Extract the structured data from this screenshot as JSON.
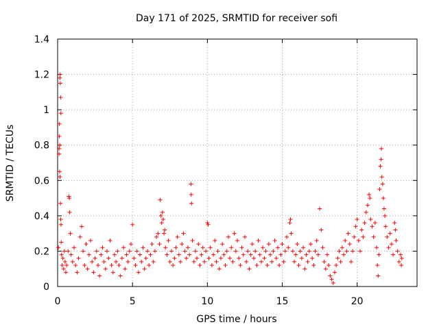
{
  "chart_data": {
    "type": "scatter",
    "title": "Day 171 of 2025, SRMTID for receiver sofi",
    "xlabel": "GPS time / hours",
    "ylabel": "SRMTID / TECUs",
    "xlim": [
      0,
      24
    ],
    "ylim": [
      0,
      1.4
    ],
    "xticks": [
      0,
      5,
      10,
      15,
      20
    ],
    "yticks": [
      0,
      0.2,
      0.4,
      0.6,
      0.8,
      1.0,
      1.2,
      1.4
    ],
    "xtick_labels": [
      "0",
      "5",
      "10",
      "15",
      "20"
    ],
    "ytick_labels": [
      "0",
      "0.2",
      "0.4",
      "0.6",
      "0.8",
      "1",
      "1.2",
      "1.4"
    ],
    "grid": true,
    "marker": "+",
    "marker_color": "#ff0000",
    "series": [
      {
        "name": "sofi",
        "points": [
          [
            0.05,
            0.22
          ],
          [
            0.1,
            0.78
          ],
          [
            0.12,
            0.92
          ],
          [
            0.13,
            0.65
          ],
          [
            0.15,
            1.18
          ],
          [
            0.17,
            1.2
          ],
          [
            0.18,
            1.15
          ],
          [
            0.2,
            1.07
          ],
          [
            0.22,
            0.98
          ],
          [
            0.14,
            0.8
          ],
          [
            0.16,
            0.62
          ],
          [
            0.19,
            0.47
          ],
          [
            0.21,
            0.38
          ],
          [
            0.23,
            0.35
          ],
          [
            0.11,
            0.85
          ],
          [
            0.1,
            0.75
          ],
          [
            0.24,
            0.25
          ],
          [
            0.26,
            0.18
          ],
          [
            0.3,
            0.12
          ],
          [
            0.35,
            0.16
          ],
          [
            0.4,
            0.1
          ],
          [
            0.45,
            0.2
          ],
          [
            0.5,
            0.14
          ],
          [
            0.55,
            0.08
          ],
          [
            0.6,
            0.12
          ],
          [
            0.7,
            0.2
          ],
          [
            0.75,
            0.51
          ],
          [
            0.78,
            0.5
          ],
          [
            0.8,
            0.42
          ],
          [
            0.85,
            0.3
          ],
          [
            0.9,
            0.18
          ],
          [
            1.0,
            0.14
          ],
          [
            1.1,
            0.22
          ],
          [
            1.2,
            0.12
          ],
          [
            1.3,
            0.08
          ],
          [
            1.4,
            0.16
          ],
          [
            1.5,
            0.28
          ],
          [
            1.6,
            0.34
          ],
          [
            1.7,
            0.2
          ],
          [
            1.8,
            0.12
          ],
          [
            1.9,
            0.24
          ],
          [
            2.0,
            0.1
          ],
          [
            2.1,
            0.18
          ],
          [
            2.2,
            0.26
          ],
          [
            2.3,
            0.14
          ],
          [
            2.4,
            0.08
          ],
          [
            2.5,
            0.16
          ],
          [
            2.6,
            0.2
          ],
          [
            2.7,
            0.12
          ],
          [
            2.8,
            0.06
          ],
          [
            2.9,
            0.18
          ],
          [
            3.0,
            0.22
          ],
          [
            3.1,
            0.14
          ],
          [
            3.2,
            0.1
          ],
          [
            3.3,
            0.2
          ],
          [
            3.4,
            0.16
          ],
          [
            3.5,
            0.26
          ],
          [
            3.6,
            0.12
          ],
          [
            3.7,
            0.08
          ],
          [
            3.8,
            0.18
          ],
          [
            3.9,
            0.14
          ],
          [
            4.0,
            0.2
          ],
          [
            4.1,
            0.12
          ],
          [
            4.2,
            0.06
          ],
          [
            4.3,
            0.16
          ],
          [
            4.4,
            0.22
          ],
          [
            4.5,
            0.1
          ],
          [
            4.6,
            0.18
          ],
          [
            4.7,
            0.14
          ],
          [
            4.8,
            0.2
          ],
          [
            4.9,
            0.24
          ],
          [
            5.0,
            0.35
          ],
          [
            5.1,
            0.16
          ],
          [
            5.2,
            0.12
          ],
          [
            5.3,
            0.2
          ],
          [
            5.4,
            0.08
          ],
          [
            5.5,
            0.18
          ],
          [
            5.6,
            0.14
          ],
          [
            5.7,
            0.22
          ],
          [
            5.8,
            0.1
          ],
          [
            5.9,
            0.16
          ],
          [
            6.0,
            0.2
          ],
          [
            6.1,
            0.12
          ],
          [
            6.2,
            0.18
          ],
          [
            6.3,
            0.24
          ],
          [
            6.4,
            0.14
          ],
          [
            6.5,
            0.2
          ],
          [
            6.6,
            0.28
          ],
          [
            6.7,
            0.3
          ],
          [
            6.8,
            0.24
          ],
          [
            6.85,
            0.49
          ],
          [
            6.9,
            0.4
          ],
          [
            6.95,
            0.36
          ],
          [
            7.0,
            0.42
          ],
          [
            7.05,
            0.38
          ],
          [
            7.1,
            0.3
          ],
          [
            7.15,
            0.32
          ],
          [
            7.2,
            0.22
          ],
          [
            7.3,
            0.18
          ],
          [
            7.4,
            0.26
          ],
          [
            7.5,
            0.14
          ],
          [
            7.6,
            0.2
          ],
          [
            7.7,
            0.12
          ],
          [
            7.8,
            0.16
          ],
          [
            7.9,
            0.22
          ],
          [
            8.0,
            0.28
          ],
          [
            8.1,
            0.18
          ],
          [
            8.2,
            0.14
          ],
          [
            8.3,
            0.24
          ],
          [
            8.4,
            0.3
          ],
          [
            8.5,
            0.2
          ],
          [
            8.6,
            0.16
          ],
          [
            8.7,
            0.22
          ],
          [
            8.8,
            0.18
          ],
          [
            8.9,
            0.58
          ],
          [
            8.92,
            0.52
          ],
          [
            8.94,
            0.47
          ],
          [
            9.0,
            0.26
          ],
          [
            9.1,
            0.14
          ],
          [
            9.2,
            0.2
          ],
          [
            9.3,
            0.16
          ],
          [
            9.4,
            0.24
          ],
          [
            9.5,
            0.12
          ],
          [
            9.6,
            0.18
          ],
          [
            9.7,
            0.22
          ],
          [
            9.8,
            0.14
          ],
          [
            9.9,
            0.2
          ],
          [
            10.0,
            0.36
          ],
          [
            10.05,
            0.35
          ],
          [
            10.1,
            0.16
          ],
          [
            10.2,
            0.22
          ],
          [
            10.3,
            0.12
          ],
          [
            10.4,
            0.18
          ],
          [
            10.5,
            0.26
          ],
          [
            10.6,
            0.14
          ],
          [
            10.7,
            0.2
          ],
          [
            10.8,
            0.1
          ],
          [
            10.9,
            0.16
          ],
          [
            11.0,
            0.24
          ],
          [
            11.1,
            0.18
          ],
          [
            11.2,
            0.12
          ],
          [
            11.3,
            0.2
          ],
          [
            11.4,
            0.28
          ],
          [
            11.5,
            0.16
          ],
          [
            11.6,
            0.22
          ],
          [
            11.7,
            0.14
          ],
          [
            11.8,
            0.3
          ],
          [
            11.9,
            0.2
          ],
          [
            12.0,
            0.26
          ],
          [
            12.1,
            0.16
          ],
          [
            12.2,
            0.12
          ],
          [
            12.3,
            0.22
          ],
          [
            12.4,
            0.18
          ],
          [
            12.5,
            0.28
          ],
          [
            12.6,
            0.14
          ],
          [
            12.7,
            0.2
          ],
          [
            12.8,
            0.1
          ],
          [
            12.9,
            0.18
          ],
          [
            13.0,
            0.24
          ],
          [
            13.1,
            0.16
          ],
          [
            13.2,
            0.2
          ],
          [
            13.3,
            0.12
          ],
          [
            13.4,
            0.26
          ],
          [
            13.5,
            0.18
          ],
          [
            13.6,
            0.14
          ],
          [
            13.7,
            0.22
          ],
          [
            13.8,
            0.16
          ],
          [
            13.9,
            0.2
          ],
          [
            14.0,
            0.12
          ],
          [
            14.1,
            0.24
          ],
          [
            14.2,
            0.18
          ],
          [
            14.3,
            0.14
          ],
          [
            14.4,
            0.2
          ],
          [
            14.5,
            0.26
          ],
          [
            14.6,
            0.16
          ],
          [
            14.7,
            0.22
          ],
          [
            14.8,
            0.12
          ],
          [
            14.9,
            0.18
          ],
          [
            15.0,
            0.24
          ],
          [
            15.1,
            0.14
          ],
          [
            15.2,
            0.2
          ],
          [
            15.3,
            0.28
          ],
          [
            15.4,
            0.22
          ],
          [
            15.5,
            0.36
          ],
          [
            15.55,
            0.38
          ],
          [
            15.6,
            0.3
          ],
          [
            15.7,
            0.2
          ],
          [
            15.8,
            0.14
          ],
          [
            15.9,
            0.18
          ],
          [
            16.0,
            0.24
          ],
          [
            16.1,
            0.12
          ],
          [
            16.2,
            0.2
          ],
          [
            16.3,
            0.16
          ],
          [
            16.4,
            0.22
          ],
          [
            16.5,
            0.1
          ],
          [
            16.6,
            0.18
          ],
          [
            16.7,
            0.14
          ],
          [
            16.8,
            0.2
          ],
          [
            16.9,
            0.24
          ],
          [
            17.0,
            0.16
          ],
          [
            17.1,
            0.12
          ],
          [
            17.2,
            0.2
          ],
          [
            17.3,
            0.26
          ],
          [
            17.4,
            0.18
          ],
          [
            17.5,
            0.44
          ],
          [
            17.6,
            0.32
          ],
          [
            17.7,
            0.22
          ],
          [
            17.8,
            0.14
          ],
          [
            17.9,
            0.1
          ],
          [
            18.0,
            0.18
          ],
          [
            18.1,
            0.12
          ],
          [
            18.2,
            0.06
          ],
          [
            18.3,
            0.04
          ],
          [
            18.4,
            0.02
          ],
          [
            18.5,
            0.08
          ],
          [
            18.6,
            0.12
          ],
          [
            18.7,
            0.16
          ],
          [
            18.8,
            0.2
          ],
          [
            18.9,
            0.14
          ],
          [
            19.0,
            0.22
          ],
          [
            19.1,
            0.18
          ],
          [
            19.2,
            0.26
          ],
          [
            19.3,
            0.2
          ],
          [
            19.4,
            0.3
          ],
          [
            19.5,
            0.24
          ],
          [
            19.6,
            0.14
          ],
          [
            19.7,
            0.2
          ],
          [
            19.8,
            0.28
          ],
          [
            19.9,
            0.34
          ],
          [
            20.0,
            0.38
          ],
          [
            20.1,
            0.26
          ],
          [
            20.2,
            0.2
          ],
          [
            20.3,
            0.32
          ],
          [
            20.4,
            0.28
          ],
          [
            20.5,
            0.36
          ],
          [
            20.6,
            0.42
          ],
          [
            20.7,
            0.46
          ],
          [
            20.8,
            0.52
          ],
          [
            20.85,
            0.5
          ],
          [
            20.9,
            0.38
          ],
          [
            21.0,
            0.34
          ],
          [
            21.1,
            0.28
          ],
          [
            21.2,
            0.36
          ],
          [
            21.3,
            0.22
          ],
          [
            21.35,
            0.12
          ],
          [
            21.4,
            0.06
          ],
          [
            21.45,
            0.18
          ],
          [
            21.5,
            0.55
          ],
          [
            21.55,
            0.68
          ],
          [
            21.6,
            0.72
          ],
          [
            21.62,
            0.78
          ],
          [
            21.65,
            0.62
          ],
          [
            21.7,
            0.58
          ],
          [
            21.75,
            0.5
          ],
          [
            21.8,
            0.44
          ],
          [
            21.85,
            0.4
          ],
          [
            21.9,
            0.34
          ],
          [
            22.0,
            0.28
          ],
          [
            22.1,
            0.22
          ],
          [
            22.2,
            0.3
          ],
          [
            22.3,
            0.24
          ],
          [
            22.4,
            0.18
          ],
          [
            22.5,
            0.36
          ],
          [
            22.55,
            0.32
          ],
          [
            22.6,
            0.26
          ],
          [
            22.7,
            0.2
          ],
          [
            22.8,
            0.14
          ],
          [
            22.9,
            0.18
          ],
          [
            22.95,
            0.12
          ],
          [
            22.98,
            0.16
          ]
        ]
      }
    ]
  }
}
